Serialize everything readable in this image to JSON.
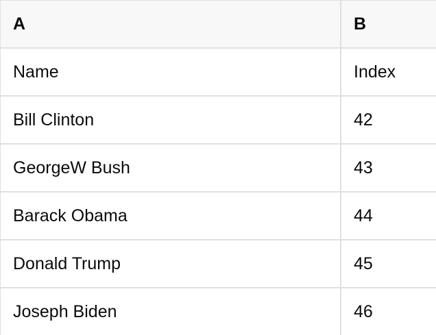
{
  "table": {
    "columns": [
      {
        "label": "A"
      },
      {
        "label": "B"
      }
    ],
    "rows": [
      {
        "cells": [
          "Name",
          "Index"
        ]
      },
      {
        "cells": [
          "Bill Clinton",
          "42"
        ]
      },
      {
        "cells": [
          "GeorgeW Bush",
          "43"
        ]
      },
      {
        "cells": [
          "Barack Obama",
          "44"
        ]
      },
      {
        "cells": [
          "Donald Trump",
          "45"
        ]
      },
      {
        "cells": [
          "Joseph Biden",
          "46"
        ]
      }
    ]
  },
  "colors": {
    "header_bg": "#f8f8f8",
    "border": "#e0e0e0",
    "text": "#0b0b0b",
    "row_bg": "#ffffff"
  }
}
